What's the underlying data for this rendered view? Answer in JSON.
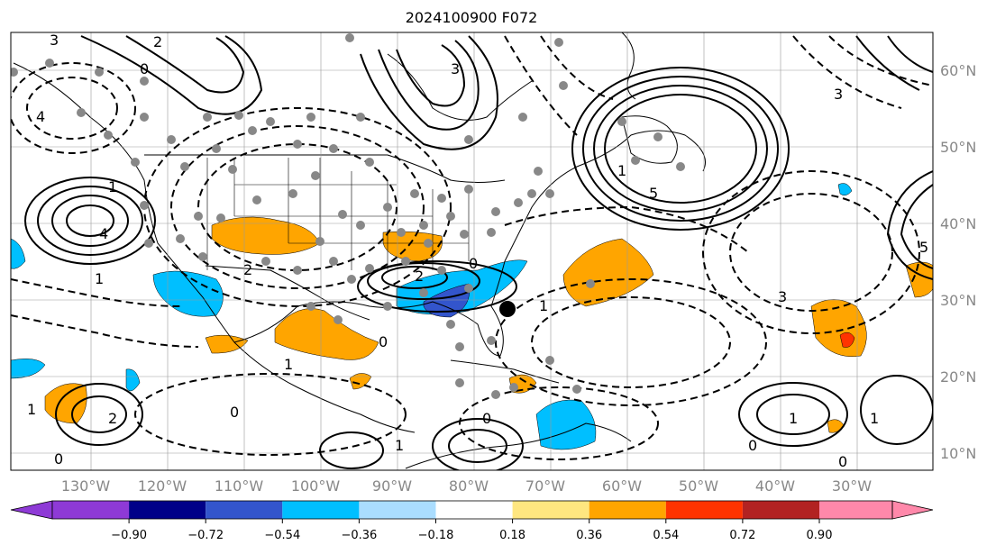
{
  "title": "2024100900 F072",
  "lon_labels": [
    "130°W",
    "120°W",
    "110°W",
    "100°W",
    "90°W",
    "80°W",
    "70°W",
    "60°W",
    "50°W",
    "40°W",
    "30°W"
  ],
  "lat_labels": [
    "60°N",
    "50°N",
    "40°N",
    "30°N",
    "20°N",
    "10°N"
  ],
  "colorbar": {
    "ticks": [
      "−0.90",
      "−0.72",
      "−0.54",
      "−0.36",
      "−0.18",
      "0.18",
      "0.36",
      "0.54",
      "0.72",
      "0.90"
    ],
    "colors": [
      "#8e3ad6",
      "#000088",
      "#3355cc",
      "#00bfff",
      "#aaddff",
      "#ffffff",
      "#ffe680",
      "#ffa500",
      "#ff3300",
      "#b22222",
      "#ff88aa"
    ]
  },
  "contour_labels": [
    "3",
    "2",
    "0",
    "3",
    "5",
    "1",
    "4",
    "1",
    "4",
    "2",
    "0",
    "1",
    "1",
    "2",
    "0",
    "1",
    "3",
    "5",
    "1",
    "0",
    "1",
    "2",
    "0",
    "0",
    "1",
    "0",
    "0",
    "3",
    "1"
  ],
  "map_features": {
    "storm_marker": "black-dot",
    "station_marker": "gray-dots"
  }
}
